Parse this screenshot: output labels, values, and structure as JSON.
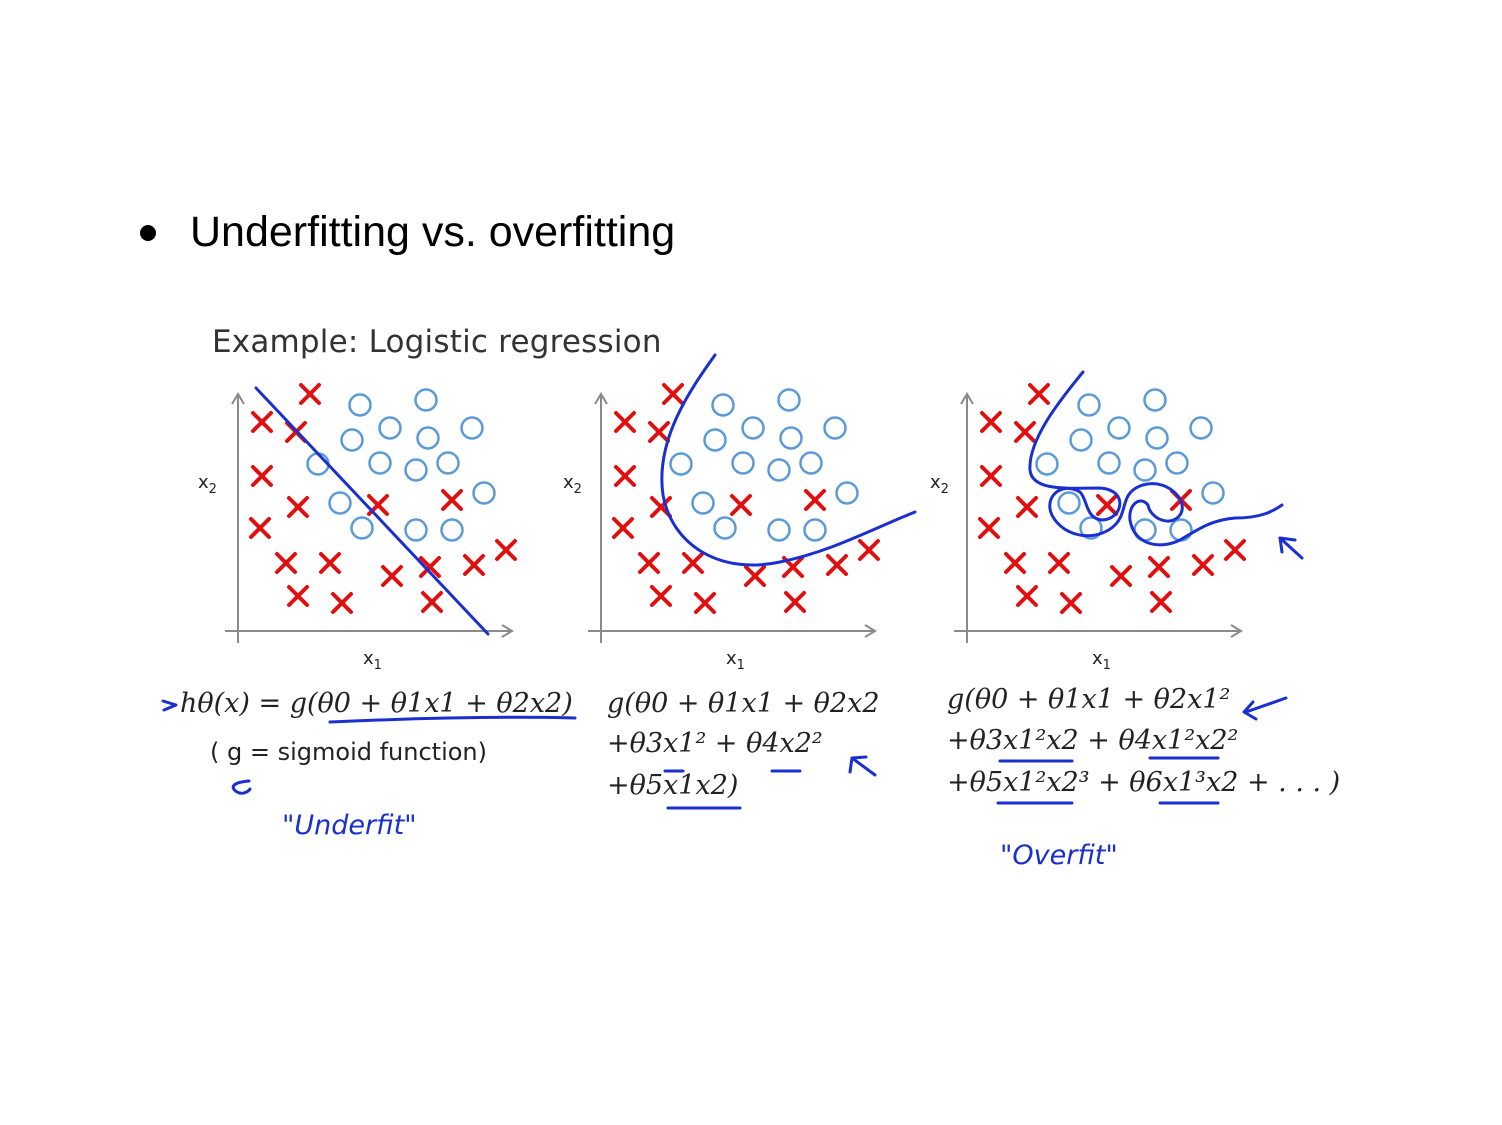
{
  "bullet": "Underfitting vs. overfitting",
  "example_title": "Example: Logistic regression",
  "panels": [
    {
      "id": "underfit",
      "x_axis_label": "x1",
      "y_axis_label": "x2",
      "equation_lines": [
        "hθ(x) = g(θ0 + θ1x1 + θ2x2)"
      ],
      "note": "( g = sigmoid function)",
      "handwritten_label": "\"Underfit\""
    },
    {
      "id": "just-right",
      "x_axis_label": "x1",
      "y_axis_label": "x2",
      "equation_lines": [
        "g(θ0 + θ1x1 + θ2x2",
        "+θ3x1² + θ4x2²",
        "+θ5x1x2)"
      ],
      "note": "",
      "handwritten_label": ""
    },
    {
      "id": "overfit",
      "x_axis_label": "x1",
      "y_axis_label": "x2",
      "equation_lines": [
        "g(θ0 + θ1x1 + θ2x1²",
        "+θ3x1²x2 + θ4x1²x2²",
        "+θ5x1²x2³ + θ6x1³x2 + . . . )"
      ],
      "note": "",
      "handwritten_label": "\"Overfit\""
    }
  ],
  "colors": {
    "cross": "#e01010",
    "circle": "#5a9ad8",
    "ink": "#1a2fd0",
    "axis": "#8a8a8a"
  }
}
